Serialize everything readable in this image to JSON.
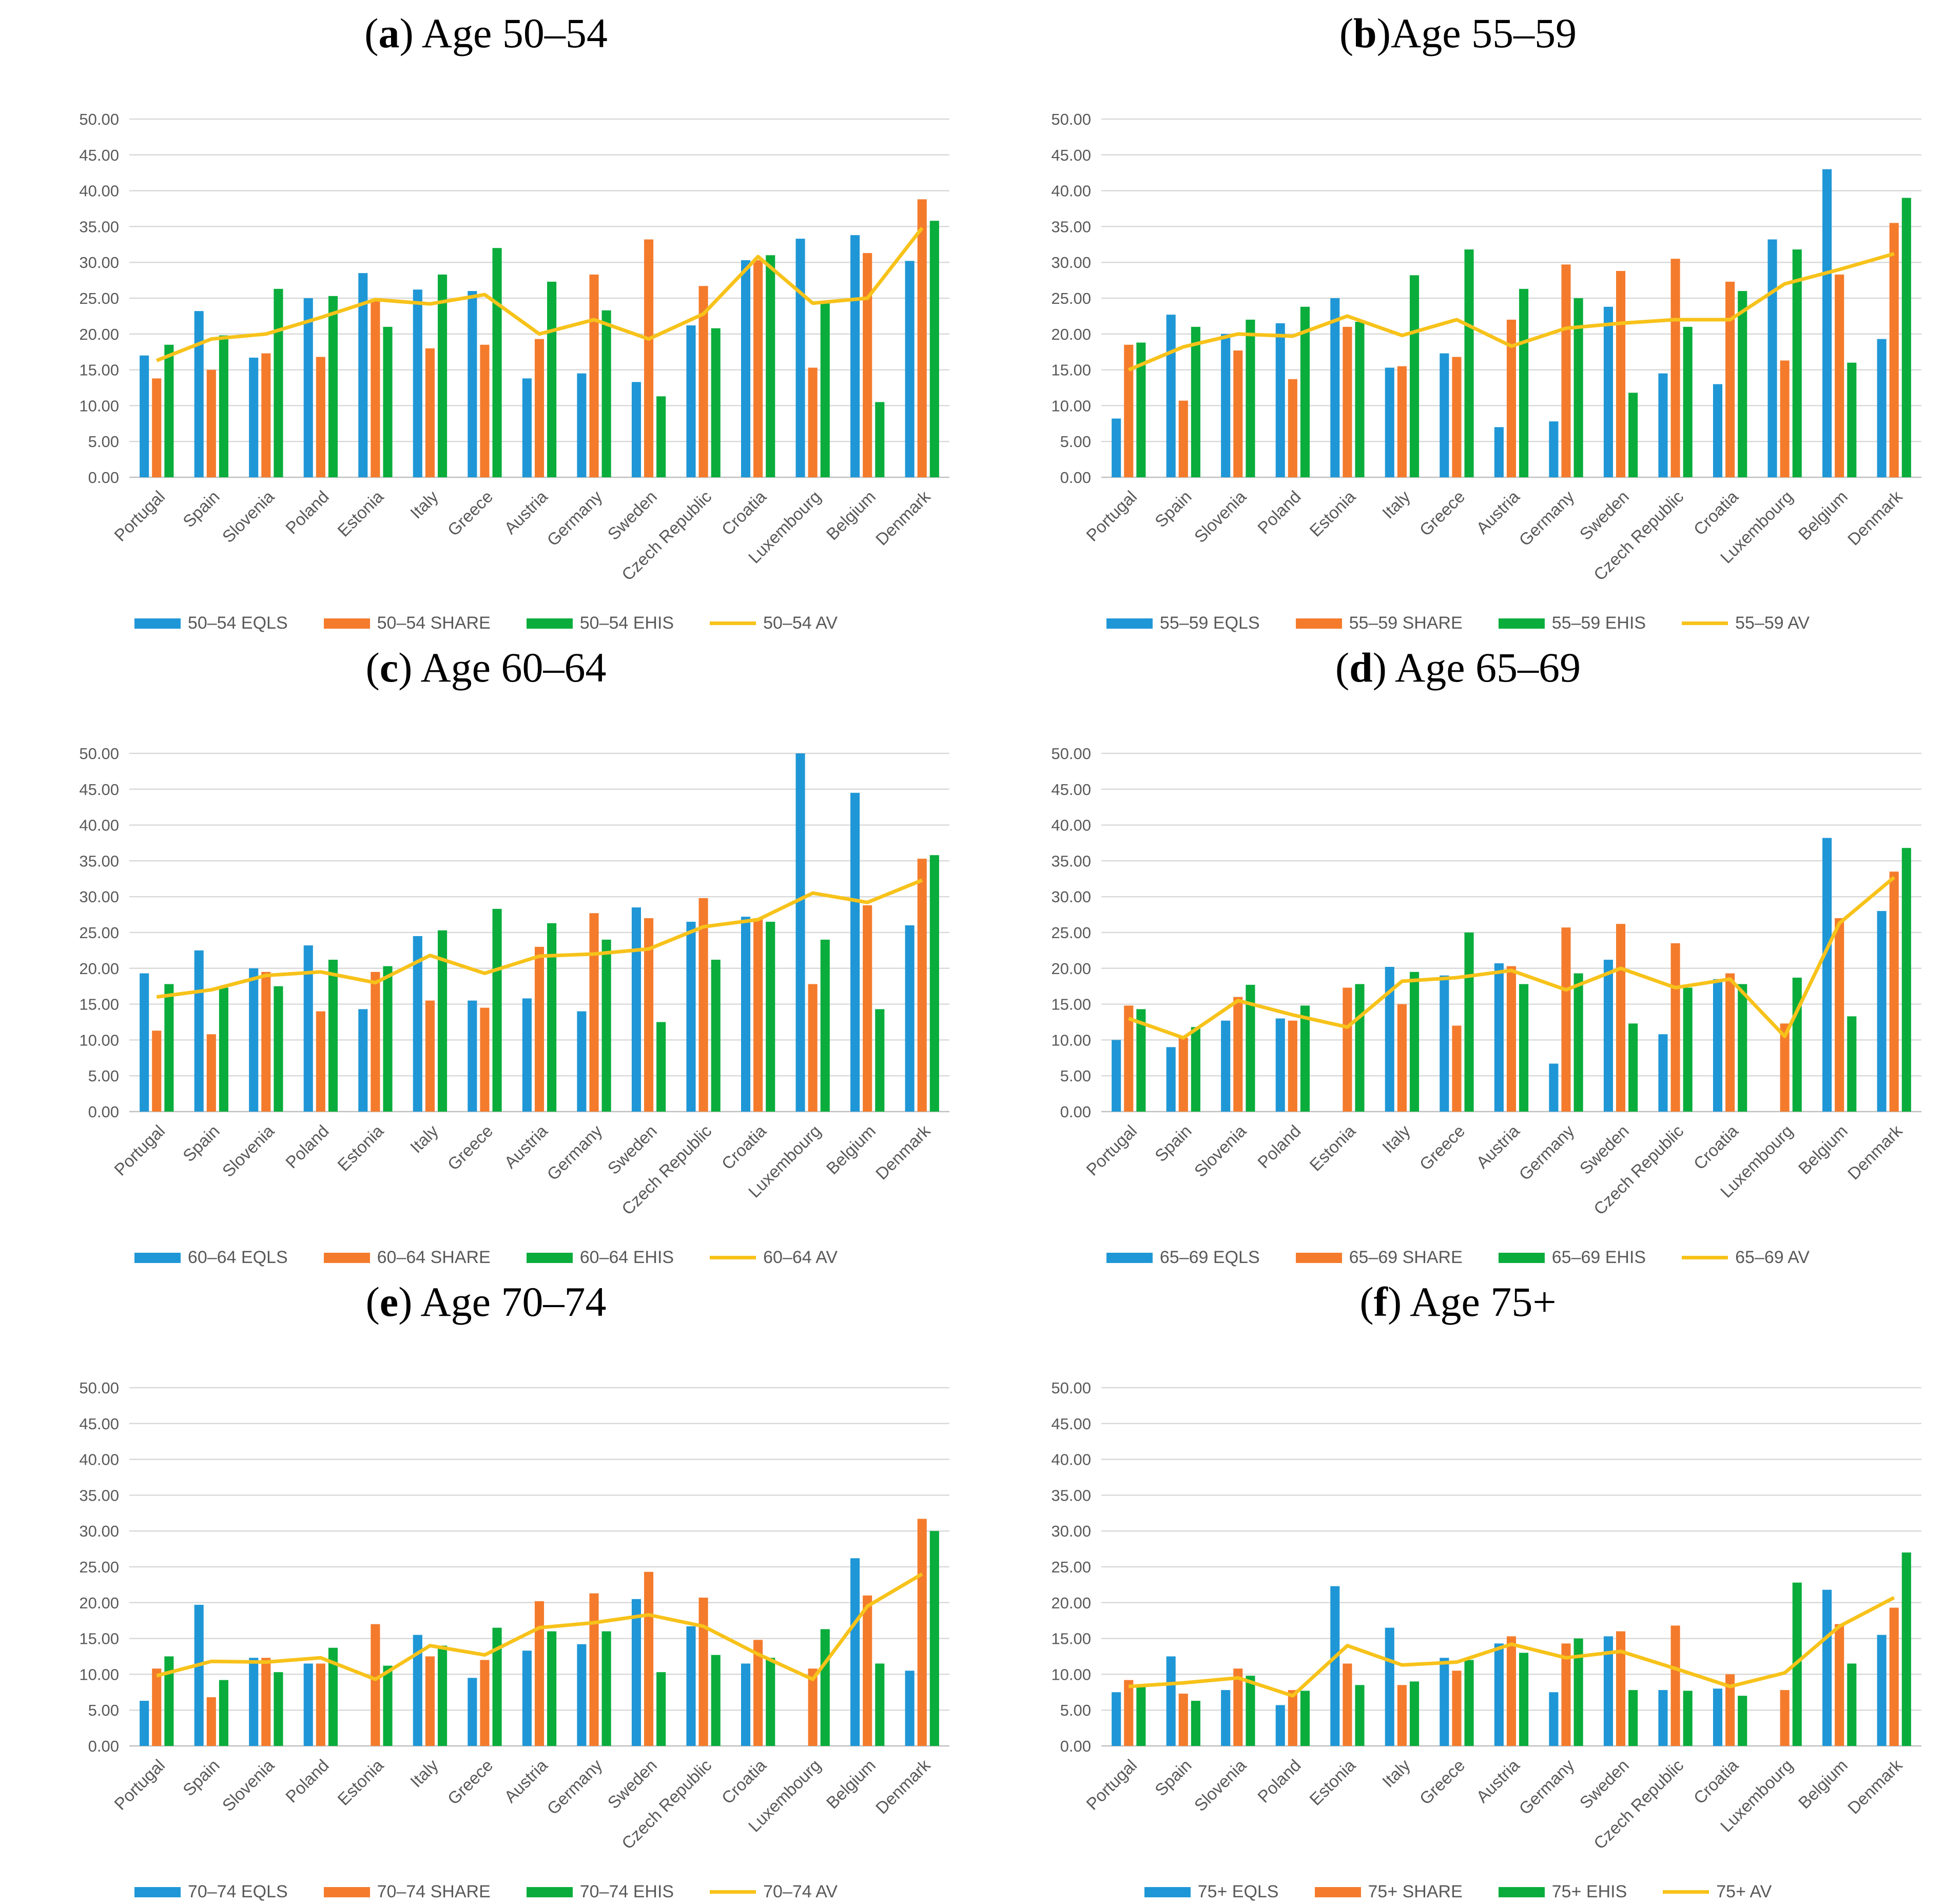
{
  "colors": {
    "EQLS": "#1f97d6",
    "SHARE": "#f47b2c",
    "EHIS": "#0aad3c",
    "AV": "#f7c21a",
    "grid": "#d9d9d9",
    "axis": "#595959"
  },
  "chart_data": [
    {
      "type": "bar",
      "title_letter": "a",
      "title_rest": ") Age 50–54",
      "title_open": "(",
      "categories": [
        "Portugal",
        "Spain",
        "Slovenia",
        "Poland",
        "Estonia",
        "Italy",
        "Greece",
        "Austria",
        "Germany",
        "Sweden",
        "Czech Republic",
        "Croatia",
        "Luxembourg",
        "Belgium",
        "Denmark"
      ],
      "ylim": [
        0,
        50
      ],
      "yticks": [
        "0.00",
        "5.00",
        "10.00",
        "15.00",
        "20.00",
        "25.00",
        "30.00",
        "35.00",
        "40.00",
        "45.00",
        "50.00"
      ],
      "series": [
        {
          "name": "50–54 EQLS",
          "key": "EQLS",
          "values": [
            17.0,
            23.2,
            16.7,
            25.0,
            28.5,
            26.2,
            26.0,
            13.8,
            14.5,
            13.3,
            21.2,
            30.3,
            33.3,
            33.8,
            30.2
          ]
        },
        {
          "name": "50–54 SHARE",
          "key": "SHARE",
          "values": [
            13.8,
            15.0,
            17.3,
            16.8,
            24.7,
            18.0,
            18.5,
            19.3,
            28.3,
            33.2,
            26.7,
            30.3,
            15.3,
            31.3,
            38.8
          ]
        },
        {
          "name": "50–54 EHIS",
          "key": "EHIS",
          "values": [
            18.5,
            19.8,
            26.3,
            25.3,
            21.0,
            28.3,
            32.0,
            27.3,
            23.3,
            11.3,
            20.8,
            31.0,
            24.3,
            10.5,
            35.8
          ]
        },
        {
          "name": "50–54 AV",
          "key": "AV",
          "line": true,
          "values": [
            16.3,
            19.3,
            20.0,
            22.3,
            24.8,
            24.2,
            25.5,
            20.0,
            22.0,
            19.3,
            22.8,
            30.8,
            24.3,
            25.0,
            34.8
          ]
        }
      ]
    },
    {
      "type": "bar",
      "title_letter": "b",
      "title_rest": ")Age 55–59",
      "title_open": "(",
      "categories": [
        "Portugal",
        "Spain",
        "Slovenia",
        "Poland",
        "Estonia",
        "Italy",
        "Greece",
        "Austria",
        "Germany",
        "Sweden",
        "Czech Republic",
        "Croatia",
        "Luxembourg",
        "Belgium",
        "Denmark"
      ],
      "ylim": [
        0,
        50
      ],
      "yticks": [
        "0.00",
        "5.00",
        "10.00",
        "15.00",
        "20.00",
        "25.00",
        "30.00",
        "35.00",
        "40.00",
        "45.00",
        "50.00"
      ],
      "series": [
        {
          "name": "55–59 EQLS",
          "key": "EQLS",
          "values": [
            8.2,
            22.7,
            20.0,
            21.5,
            25.0,
            15.3,
            17.3,
            7.0,
            7.8,
            23.8,
            14.5,
            13.0,
            33.2,
            43.0,
            19.3
          ]
        },
        {
          "name": "55–59 SHARE",
          "key": "SHARE",
          "values": [
            18.5,
            10.7,
            17.7,
            13.7,
            21.0,
            15.5,
            16.8,
            22.0,
            29.7,
            28.8,
            30.5,
            27.3,
            16.3,
            28.3,
            35.5
          ]
        },
        {
          "name": "55–59 EHIS",
          "key": "EHIS",
          "values": [
            18.8,
            21.0,
            22.0,
            23.8,
            21.7,
            28.2,
            31.8,
            26.3,
            25.0,
            11.8,
            21.0,
            26.0,
            31.8,
            16.0,
            39.0
          ]
        },
        {
          "name": "55–59 AV",
          "key": "AV",
          "line": true,
          "values": [
            15.0,
            18.2,
            20.0,
            19.7,
            22.5,
            19.8,
            22.0,
            18.3,
            20.8,
            21.5,
            22.0,
            22.0,
            27.0,
            29.0,
            31.2
          ]
        }
      ]
    },
    {
      "type": "bar",
      "title_letter": "c",
      "title_rest": ") Age 60–64",
      "title_open": "(",
      "categories": [
        "Portugal",
        "Spain",
        "Slovenia",
        "Poland",
        "Estonia",
        "Italy",
        "Greece",
        "Austria",
        "Germany",
        "Sweden",
        "Czech Republic",
        "Croatia",
        "Luxembourg",
        "Belgium",
        "Denmark"
      ],
      "ylim": [
        0,
        50
      ],
      "yticks": [
        "0.00",
        "5.00",
        "10.00",
        "15.00",
        "20.00",
        "25.00",
        "30.00",
        "35.00",
        "40.00",
        "45.00",
        "50.00"
      ],
      "series": [
        {
          "name": "60–64 EQLS",
          "key": "EQLS",
          "values": [
            19.3,
            22.5,
            20.0,
            23.2,
            14.3,
            24.5,
            15.5,
            15.8,
            14.0,
            28.5,
            26.5,
            27.2,
            50.0,
            44.5,
            26.0
          ]
        },
        {
          "name": "60–64 SHARE",
          "key": "SHARE",
          "values": [
            11.3,
            10.8,
            19.5,
            14.0,
            19.5,
            15.5,
            14.5,
            23.0,
            27.7,
            27.0,
            29.8,
            27.0,
            17.8,
            28.8,
            35.3
          ]
        },
        {
          "name": "60–64 EHIS",
          "key": "EHIS",
          "values": [
            17.8,
            17.3,
            17.5,
            21.2,
            20.3,
            25.3,
            28.3,
            26.3,
            24.0,
            12.5,
            21.2,
            26.5,
            24.0,
            14.3,
            35.8
          ]
        },
        {
          "name": "60–64 AV",
          "key": "AV",
          "line": true,
          "values": [
            16.0,
            17.0,
            19.0,
            19.5,
            18.0,
            21.8,
            19.3,
            21.7,
            22.0,
            22.7,
            25.8,
            26.8,
            30.5,
            29.2,
            32.3
          ]
        }
      ]
    },
    {
      "type": "bar",
      "title_letter": "d",
      "title_rest": ") Age 65–69",
      "title_open": "(",
      "categories": [
        "Portugal",
        "Spain",
        "Slovenia",
        "Poland",
        "Estonia",
        "Italy",
        "Greece",
        "Austria",
        "Germany",
        "Sweden",
        "Czech Republic",
        "Croatia",
        "Luxembourg",
        "Belgium",
        "Denmark"
      ],
      "ylim": [
        0,
        50
      ],
      "yticks": [
        "0.00",
        "5.00",
        "10.00",
        "15.00",
        "20.00",
        "25.00",
        "30.00",
        "35.00",
        "40.00",
        "45.00",
        "50.00"
      ],
      "series": [
        {
          "name": "65–69 EQLS",
          "key": "EQLS",
          "values": [
            10.0,
            9.0,
            12.7,
            13.0,
            0,
            20.2,
            19.0,
            20.7,
            6.7,
            21.2,
            10.8,
            18.5,
            0,
            38.2,
            28.0
          ]
        },
        {
          "name": "65–69 SHARE",
          "key": "SHARE",
          "values": [
            14.8,
            10.3,
            16.0,
            12.7,
            17.3,
            15.0,
            12.0,
            20.3,
            25.7,
            26.2,
            23.5,
            19.3,
            12.3,
            27.0,
            33.5
          ]
        },
        {
          "name": "65–69 EHIS",
          "key": "EHIS",
          "values": [
            14.3,
            11.8,
            17.7,
            14.8,
            17.8,
            19.5,
            25.0,
            17.8,
            19.3,
            12.3,
            17.3,
            17.8,
            18.7,
            13.3,
            36.8
          ]
        },
        {
          "name": "65–69 AV",
          "key": "AV",
          "line": true,
          "values": [
            13.0,
            10.3,
            15.5,
            13.5,
            11.8,
            18.2,
            18.7,
            19.7,
            17.0,
            20.0,
            17.3,
            18.5,
            10.5,
            26.3,
            32.7
          ]
        }
      ]
    },
    {
      "type": "bar",
      "title_letter": "e",
      "title_rest": ") Age 70–74",
      "title_open": "(",
      "categories": [
        "Portugal",
        "Spain",
        "Slovenia",
        "Poland",
        "Estonia",
        "Italy",
        "Greece",
        "Austria",
        "Germany",
        "Sweden",
        "Czech Republic",
        "Croatia",
        "Luxembourg",
        "Belgium",
        "Denmark"
      ],
      "ylim": [
        0,
        50
      ],
      "yticks": [
        "0.00",
        "5.00",
        "10.00",
        "15.00",
        "20.00",
        "25.00",
        "30.00",
        "35.00",
        "40.00",
        "45.00",
        "50.00"
      ],
      "series": [
        {
          "name": "70–74 EQLS",
          "key": "EQLS",
          "values": [
            6.3,
            19.7,
            12.3,
            11.5,
            0,
            15.5,
            9.5,
            13.3,
            14.2,
            20.5,
            16.7,
            11.5,
            0,
            26.2,
            10.5
          ]
        },
        {
          "name": "70–74 SHARE",
          "key": "SHARE",
          "values": [
            10.8,
            6.8,
            12.3,
            11.5,
            17.0,
            12.5,
            12.0,
            20.2,
            21.3,
            24.3,
            20.7,
            14.8,
            10.8,
            21.0,
            31.7
          ]
        },
        {
          "name": "70–74 EHIS",
          "key": "EHIS",
          "values": [
            12.5,
            9.2,
            10.3,
            13.7,
            11.2,
            14.0,
            16.5,
            16.0,
            16.0,
            10.3,
            12.7,
            12.3,
            16.3,
            11.5,
            30.0
          ]
        },
        {
          "name": "70–74 AV",
          "key": "AV",
          "line": true,
          "values": [
            9.8,
            11.8,
            11.7,
            12.3,
            9.3,
            14.0,
            12.7,
            16.5,
            17.2,
            18.3,
            16.7,
            12.8,
            9.3,
            19.5,
            24.0
          ]
        }
      ]
    },
    {
      "type": "bar",
      "title_letter": "f",
      "title_rest": ") Age 75+",
      "title_open": "(",
      "categories": [
        "Portugal",
        "Spain",
        "Slovenia",
        "Poland",
        "Estonia",
        "Italy",
        "Greece",
        "Austria",
        "Germany",
        "Sweden",
        "Czech Republic",
        "Croatia",
        "Luxembourg",
        "Belgium",
        "Denmark"
      ],
      "ylim": [
        0,
        50
      ],
      "yticks": [
        "0.00",
        "5.00",
        "10.00",
        "15.00",
        "20.00",
        "25.00",
        "30.00",
        "35.00",
        "40.00",
        "45.00",
        "50.00"
      ],
      "series": [
        {
          "name": "75+ EQLS",
          "key": "EQLS",
          "values": [
            7.5,
            12.5,
            7.8,
            5.7,
            22.3,
            16.5,
            12.3,
            14.3,
            7.5,
            15.3,
            7.8,
            8.0,
            0,
            21.8,
            15.5
          ]
        },
        {
          "name": "75+ SHARE",
          "key": "SHARE",
          "values": [
            9.2,
            7.3,
            10.8,
            7.8,
            11.5,
            8.5,
            10.5,
            15.3,
            14.3,
            16.0,
            16.8,
            10.0,
            7.8,
            17.0,
            19.3
          ]
        },
        {
          "name": "75+ EHIS",
          "key": "EHIS",
          "values": [
            8.2,
            6.3,
            9.8,
            7.7,
            8.5,
            9.0,
            12.0,
            13.0,
            15.0,
            7.8,
            7.7,
            7.0,
            22.8,
            11.5,
            27.0
          ]
        },
        {
          "name": "75+ AV",
          "key": "AV",
          "line": true,
          "values": [
            8.3,
            8.8,
            9.5,
            7.0,
            14.0,
            11.3,
            11.7,
            14.2,
            12.3,
            13.2,
            10.8,
            8.3,
            10.2,
            16.7,
            20.7
          ]
        }
      ]
    }
  ]
}
